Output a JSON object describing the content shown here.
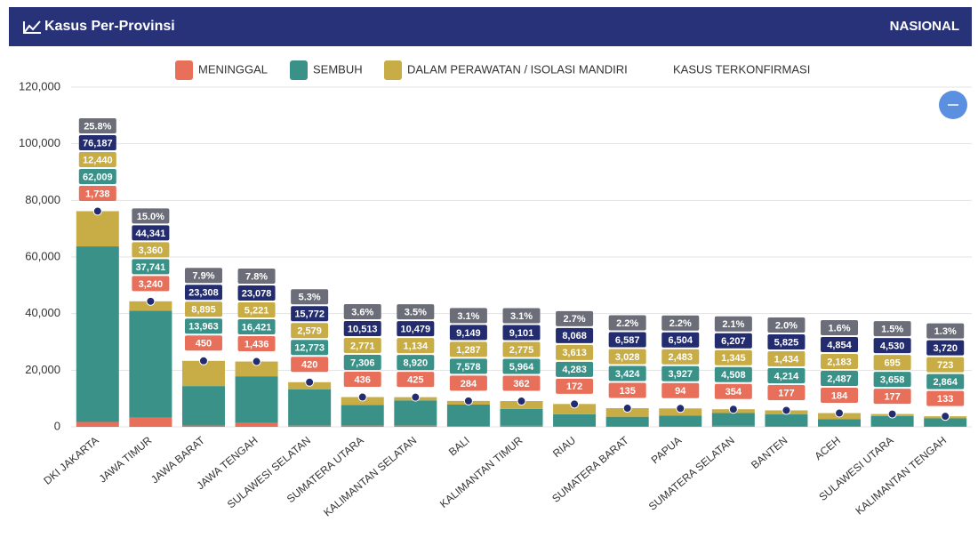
{
  "header": {
    "title": "Kasus Per-Provinsi",
    "scope": "NASIONAL"
  },
  "chart_data": {
    "type": "bar",
    "stacked": true,
    "grid": true,
    "categories": [
      "DKI JAKARTA",
      "JAWA TIMUR",
      "JAWA BARAT",
      "JAWA TENGAH",
      "SULAWESI SELATAN",
      "SUMATERA UTARA",
      "KALIMANTAN SELATAN",
      "BALI",
      "KALIMANTAN TIMUR",
      "RIAU",
      "SUMATERA BARAT",
      "PAPUA",
      "SUMATERA SELATAN",
      "BANTEN",
      "ACEH",
      "SULAWESI UTARA",
      "KALIMANTAN TENGAH"
    ],
    "series": [
      {
        "name": "MENINGGAL",
        "color": "#e8705a",
        "values": [
          1738,
          3240,
          450,
          1436,
          420,
          436,
          425,
          284,
          362,
          172,
          135,
          94,
          354,
          177,
          184,
          177,
          133
        ],
        "value_labels": [
          "1,738",
          "3,240",
          "450",
          "1,436",
          "420",
          "436",
          "425",
          "284",
          "362",
          "172",
          "135",
          "94",
          "354",
          "177",
          "184",
          "177",
          "133"
        ]
      },
      {
        "name": "SEMBUH",
        "color": "#3a9188",
        "values": [
          62009,
          37741,
          13963,
          16421,
          12773,
          7306,
          8920,
          7578,
          5964,
          4283,
          3424,
          3927,
          4508,
          4214,
          2487,
          3658,
          2864
        ],
        "value_labels": [
          "62,009",
          "37,741",
          "13,963",
          "16,421",
          "12,773",
          "7,306",
          "8,920",
          "7,578",
          "5,964",
          "4,283",
          "3,424",
          "3,927",
          "4,508",
          "4,214",
          "2,487",
          "3,658",
          "2,864"
        ]
      },
      {
        "name": "DALAM PERAWATAN / ISOLASI MANDIRI",
        "color": "#c8ac45",
        "values": [
          12440,
          3360,
          8895,
          5221,
          2579,
          2771,
          1134,
          1287,
          2775,
          3613,
          3028,
          2483,
          1345,
          1434,
          2183,
          695,
          723
        ],
        "value_labels": [
          "12,440",
          "3,360",
          "8,895",
          "5,221",
          "2,579",
          "2,771",
          "1,134",
          "1,287",
          "2,775",
          "3,613",
          "3,028",
          "2,483",
          "1,345",
          "1,434",
          "2,183",
          "695",
          "723"
        ]
      },
      {
        "name": "KASUS TERKONFIRMASI",
        "type": "point",
        "color": "#232c6e",
        "values": [
          76187,
          44341,
          23308,
          23078,
          15772,
          10513,
          10479,
          9149,
          9101,
          8068,
          6587,
          6504,
          6207,
          5825,
          4854,
          4530,
          3720
        ],
        "value_labels": [
          "76,187",
          "44,341",
          "23,308",
          "23,078",
          "15,772",
          "10,513",
          "10,479",
          "9,149",
          "9,101",
          "8,068",
          "6,587",
          "6,504",
          "6,207",
          "5,825",
          "4,854",
          "4,530",
          "3,720"
        ]
      }
    ],
    "share": {
      "color": "#6b6e78",
      "values": [
        25.8,
        15.0,
        7.9,
        7.8,
        5.3,
        3.6,
        3.5,
        3.1,
        3.1,
        2.7,
        2.2,
        2.2,
        2.1,
        2.0,
        1.6,
        1.5,
        1.3
      ],
      "value_labels": [
        "25.8%",
        "15.0%",
        "7.9%",
        "7.8%",
        "5.3%",
        "3.6%",
        "3.5%",
        "3.1%",
        "3.1%",
        "2.7%",
        "2.2%",
        "2.2%",
        "2.1%",
        "2.0%",
        "1.6%",
        "1.5%",
        "1.3%"
      ]
    },
    "ylim": [
      0,
      120000
    ],
    "yticks": [
      0,
      {
        "value": 20000,
        "label": "20,000"
      },
      {
        "value": 40000,
        "label": "40,000"
      },
      {
        "value": 60000,
        "label": "60,000"
      },
      {
        "value": 80000,
        "label": "80,000"
      },
      {
        "value": 100000,
        "label": "100,000"
      },
      {
        "value": 120000,
        "label": "120,000"
      }
    ]
  }
}
